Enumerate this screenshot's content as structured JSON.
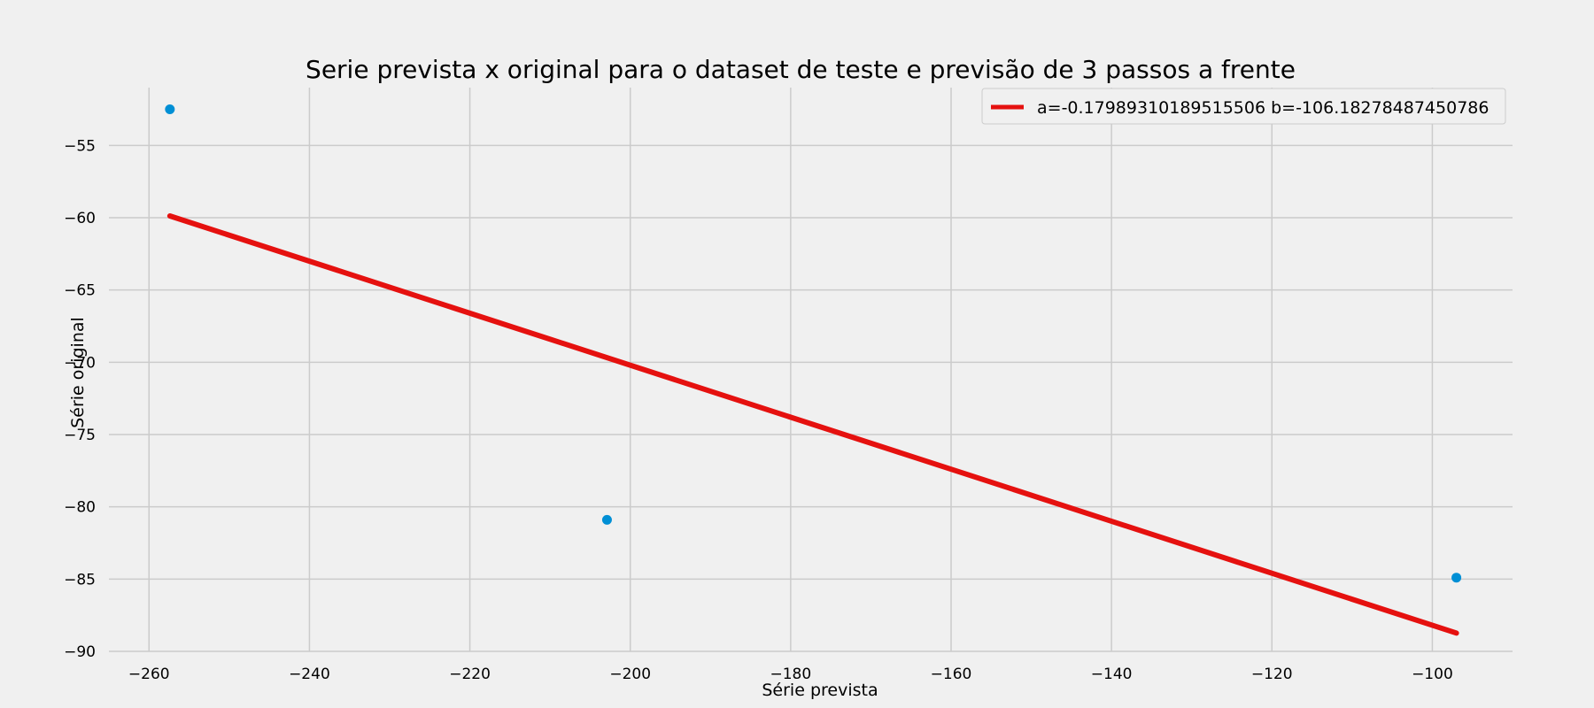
{
  "chart_data": {
    "type": "scatter",
    "title": "Serie prevista x original para o dataset de teste e previsão de 3 passos a frente",
    "xlabel": "Série prevista",
    "ylabel": "Série original",
    "xlim": [
      -265,
      -90
    ],
    "ylim": [
      -90,
      -51
    ],
    "x_ticks": [
      -260,
      -240,
      -220,
      -200,
      -180,
      -160,
      -140,
      -120,
      -100
    ],
    "y_ticks": [
      -90,
      -85,
      -80,
      -75,
      -70,
      -65,
      -60,
      -55
    ],
    "grid": true,
    "legend_position": "top-right",
    "series": [
      {
        "kind": "scatter",
        "color": "#008fd5",
        "points": [
          {
            "x": -257.4,
            "y": -52.5
          },
          {
            "x": -202.9,
            "y": -80.9
          },
          {
            "x": -97.0,
            "y": -84.9
          }
        ]
      },
      {
        "kind": "line",
        "name": "a=-0.17989310189515506 b=-106.18278487450786",
        "color": "#e5110f",
        "slope": -0.17989310189515506,
        "intercept": -106.18278487450786,
        "x_range": [
          -257.4,
          -97.0
        ]
      }
    ]
  }
}
